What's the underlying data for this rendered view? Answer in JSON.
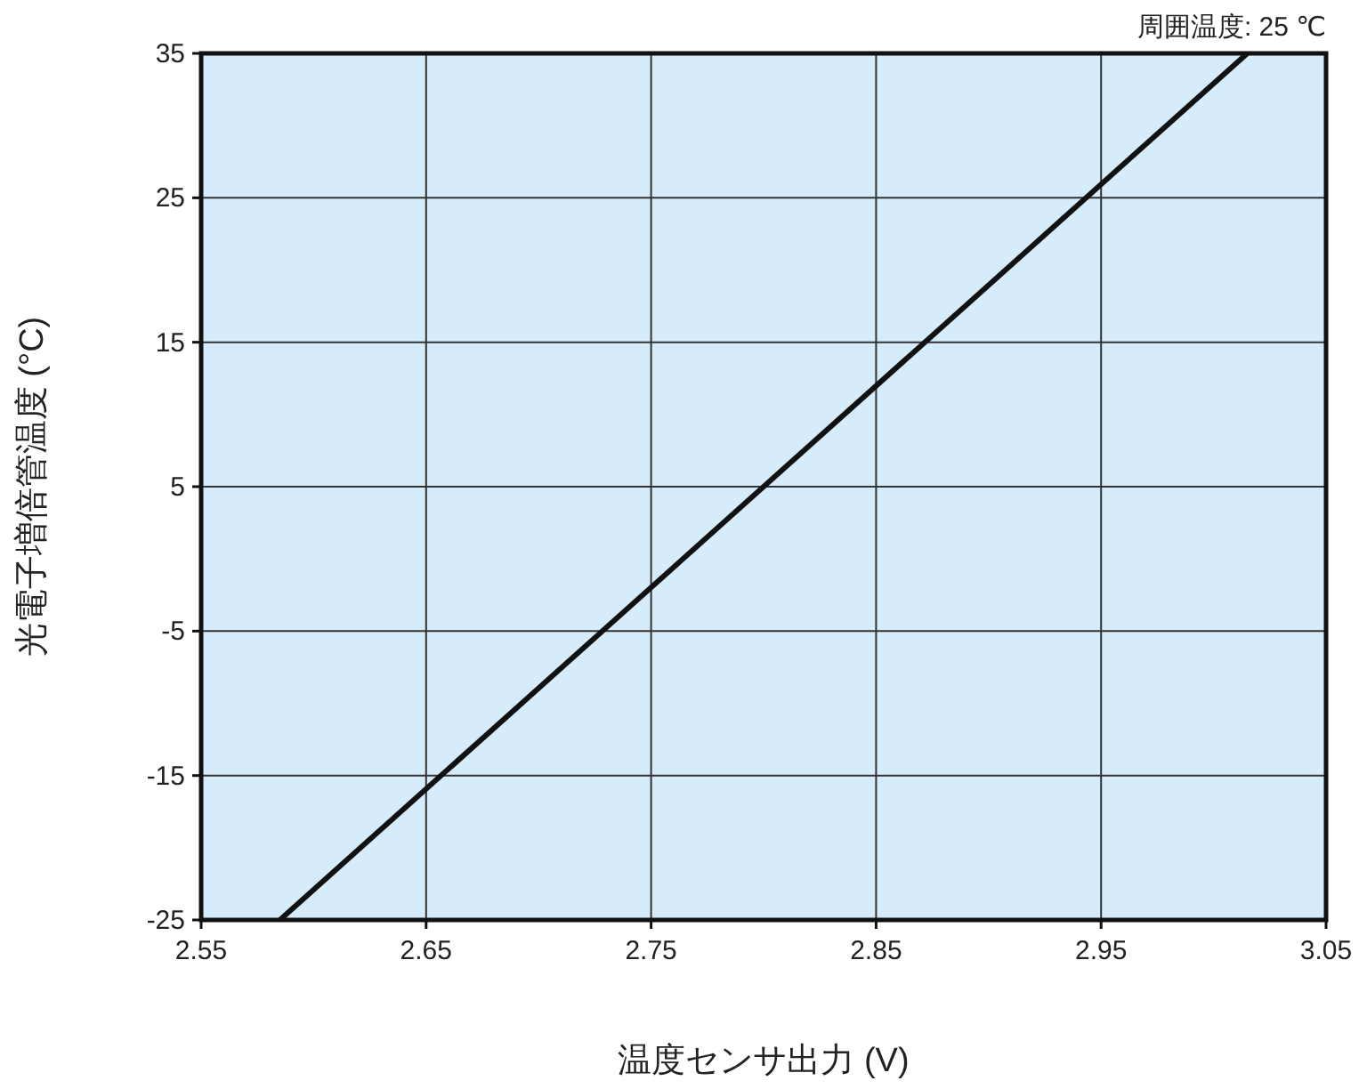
{
  "chart_data": {
    "type": "line",
    "xlabel": "温度センサ出力 (V)",
    "ylabel": "光電子増倍管温度 (°C)",
    "annotations": [
      "周囲温度: 25 ℃"
    ],
    "x": [
      2.585,
      3.015
    ],
    "series": [
      {
        "color": "#111111",
        "values": [
          -25,
          35
        ]
      }
    ],
    "xlim": [
      2.55,
      3.05
    ],
    "xticks": [
      2.55,
      2.65,
      2.75,
      2.85,
      2.95,
      3.05
    ],
    "ylim": [
      -25,
      35
    ],
    "yticks": [
      35,
      25,
      15,
      5,
      -5,
      -15,
      -25
    ],
    "grid": true,
    "line_style": "solid",
    "marker": "none"
  }
}
